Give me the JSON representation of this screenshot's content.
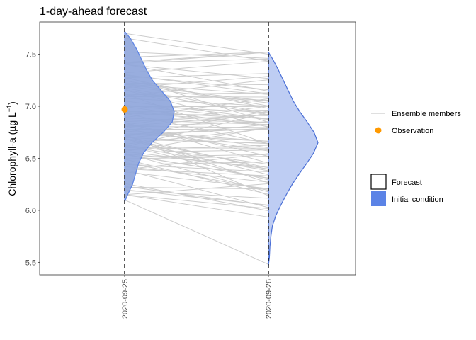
{
  "chart_data": {
    "type": "line",
    "title": "1-day-ahead forecast",
    "ylabel_main": "Chlorophyll-a (µg L",
    "ylabel_sup": "−1",
    "ylabel_end": ")",
    "xlabel": "",
    "x": [
      "2020-09-25",
      "2020-09-26"
    ],
    "ylim": [
      5.38,
      7.81
    ],
    "yticks": [
      5.5,
      6.0,
      6.5,
      7.0,
      7.5
    ],
    "ytick_labels": [
      "5.5",
      "6.0",
      "6.5",
      "7.0",
      "7.5"
    ],
    "grid": false,
    "ensemble": {
      "name": "Ensemble members",
      "count": 100,
      "color": "#cccccc",
      "start_range": [
        6.1,
        7.7
      ],
      "end_range": [
        5.48,
        7.52
      ]
    },
    "observation": {
      "name": "Observation",
      "x": "2020-09-25",
      "y": 6.97,
      "color": "#ff9900"
    },
    "initial_condition_density": {
      "name": "Initial condition",
      "x": "2020-09-25",
      "color": "#5b83e6",
      "fill": "#8fa6db",
      "profile": [
        [
          6.08,
          0.0
        ],
        [
          6.15,
          0.06
        ],
        [
          6.25,
          0.16
        ],
        [
          6.35,
          0.22
        ],
        [
          6.45,
          0.28
        ],
        [
          6.55,
          0.38
        ],
        [
          6.65,
          0.55
        ],
        [
          6.75,
          0.78
        ],
        [
          6.85,
          0.96
        ],
        [
          6.95,
          1.0
        ],
        [
          7.05,
          0.92
        ],
        [
          7.15,
          0.74
        ],
        [
          7.25,
          0.56
        ],
        [
          7.35,
          0.44
        ],
        [
          7.45,
          0.34
        ],
        [
          7.55,
          0.24
        ],
        [
          7.65,
          0.12
        ],
        [
          7.72,
          0.0
        ]
      ]
    },
    "forecast_density": {
      "name": "Forecast",
      "x": "2020-09-26",
      "color": "#4a6fd6",
      "fill": "#b8c9f2",
      "profile": [
        [
          5.47,
          0.0
        ],
        [
          5.55,
          0.02
        ],
        [
          5.65,
          0.03
        ],
        [
          5.75,
          0.05
        ],
        [
          5.85,
          0.08
        ],
        [
          5.95,
          0.15
        ],
        [
          6.05,
          0.25
        ],
        [
          6.15,
          0.36
        ],
        [
          6.25,
          0.48
        ],
        [
          6.35,
          0.62
        ],
        [
          6.45,
          0.77
        ],
        [
          6.55,
          0.91
        ],
        [
          6.65,
          1.0
        ],
        [
          6.75,
          0.92
        ],
        [
          6.85,
          0.78
        ],
        [
          6.95,
          0.63
        ],
        [
          7.05,
          0.5
        ],
        [
          7.15,
          0.4
        ],
        [
          7.25,
          0.3
        ],
        [
          7.35,
          0.2
        ],
        [
          7.45,
          0.09
        ],
        [
          7.52,
          0.0
        ]
      ]
    },
    "legend": {
      "placement": "right",
      "line_items": [
        {
          "label": "Ensemble members",
          "kind": "line",
          "color": "#cccccc"
        },
        {
          "label": "Observation",
          "kind": "point",
          "color": "#ff9900"
        }
      ],
      "fill_items": [
        {
          "label": "Forecast",
          "kind": "box",
          "color": "#ffffff"
        },
        {
          "label": "Initial condition",
          "kind": "box",
          "color": "#5b83e6"
        }
      ]
    }
  }
}
